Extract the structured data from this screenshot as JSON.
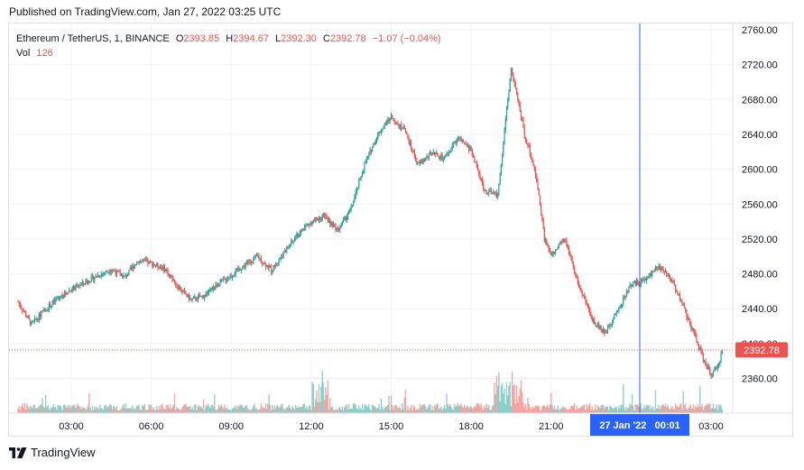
{
  "header": {
    "published": "Published on TradingView.com, Jan 27, 2022 03:25 UTC"
  },
  "legend": {
    "symbol": "Ethereum / TetherUS, 1, BINANCE",
    "o_label": "O",
    "o_value": "2393.85",
    "h_label": "H",
    "h_value": "2394.67",
    "l_label": "L",
    "l_value": "2392.30",
    "c_label": "C",
    "c_value": "2392.78",
    "change": "−1.07 (−0.04%)",
    "vol_label": "Vol",
    "vol_value": "126"
  },
  "footer": {
    "brand": "TradingView"
  },
  "colors": {
    "up": "#26a69a",
    "down": "#ef5350",
    "crosshair": "#2962ff",
    "grid": "#f0f3fa"
  },
  "chart_data": {
    "type": "candlestick",
    "y_axis": {
      "range": [
        2340,
        2760
      ],
      "ticks": [
        "2760.00",
        "2720.00",
        "2680.00",
        "2640.00",
        "2600.00",
        "2560.00",
        "2520.00",
        "2480.00",
        "2440.00",
        "2400.00",
        "2360.00"
      ]
    },
    "x_axis": {
      "ticks": [
        "03:00",
        "06:00",
        "09:00",
        "12:00",
        "15:00",
        "18:00",
        "21:00",
        "03:00"
      ]
    },
    "last_price": "2392.78",
    "crosshair_label": "27 Jan '22   00:01",
    "price_path": [
      [
        "01:00",
        2448
      ],
      [
        "01:30",
        2422
      ],
      [
        "02:00",
        2438
      ],
      [
        "02:30",
        2452
      ],
      [
        "03:00",
        2462
      ],
      [
        "03:30",
        2470
      ],
      [
        "04:00",
        2478
      ],
      [
        "04:30",
        2485
      ],
      [
        "05:00",
        2476
      ],
      [
        "05:30",
        2495
      ],
      [
        "06:00",
        2492
      ],
      [
        "06:30",
        2486
      ],
      [
        "07:00",
        2465
      ],
      [
        "07:30",
        2450
      ],
      [
        "08:00",
        2455
      ],
      [
        "08:30",
        2468
      ],
      [
        "09:00",
        2478
      ],
      [
        "09:30",
        2490
      ],
      [
        "10:00",
        2500
      ],
      [
        "10:30",
        2484
      ],
      [
        "11:00",
        2505
      ],
      [
        "11:30",
        2525
      ],
      [
        "12:00",
        2540
      ],
      [
        "12:30",
        2546
      ],
      [
        "13:00",
        2530
      ],
      [
        "13:30",
        2555
      ],
      [
        "14:00",
        2605
      ],
      [
        "14:30",
        2640
      ],
      [
        "15:00",
        2660
      ],
      [
        "15:30",
        2645
      ],
      [
        "16:00",
        2605
      ],
      [
        "16:30",
        2618
      ],
      [
        "17:00",
        2612
      ],
      [
        "17:30",
        2636
      ],
      [
        "18:00",
        2622
      ],
      [
        "18:30",
        2575
      ],
      [
        "19:00",
        2570
      ],
      [
        "19:15",
        2645
      ],
      [
        "19:30",
        2715
      ],
      [
        "19:45",
        2680
      ],
      [
        "20:00",
        2640
      ],
      [
        "20:15",
        2615
      ],
      [
        "20:30",
        2580
      ],
      [
        "20:45",
        2520
      ],
      [
        "21:00",
        2500
      ],
      [
        "21:30",
        2520
      ],
      [
        "22:00",
        2470
      ],
      [
        "22:30",
        2430
      ],
      [
        "23:00",
        2412
      ],
      [
        "23:30",
        2438
      ],
      [
        "00:00",
        2468
      ],
      [
        "00:30",
        2472
      ],
      [
        "01:00",
        2488
      ],
      [
        "01:30",
        2475
      ],
      [
        "02:00",
        2440
      ],
      [
        "02:30",
        2400
      ],
      [
        "02:45",
        2378
      ],
      [
        "03:00",
        2365
      ],
      [
        "03:15",
        2372
      ],
      [
        "03:25",
        2392.78
      ]
    ]
  }
}
